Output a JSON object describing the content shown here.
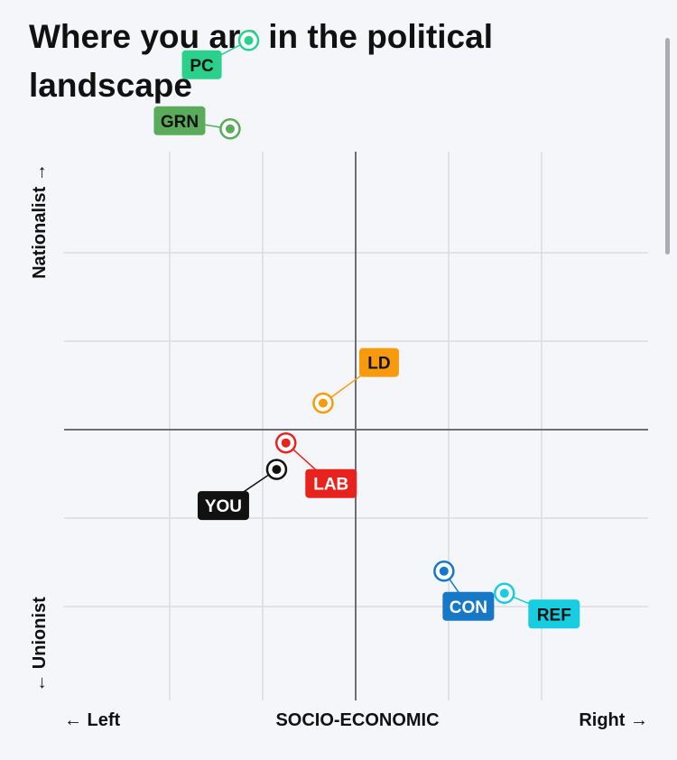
{
  "title": "Where you are in the political landscape",
  "chart_data": {
    "type": "scatter",
    "title": "Where you are in the political landscape",
    "xlabel": "SOCIO-ECONOMIC",
    "x_left_label": "← Left",
    "x_right_label": "Right →",
    "y_top_label": "Nationalist →",
    "y_bottom_label": "← Unionist",
    "xlim": [
      -5,
      5
    ],
    "ylim": [
      -5,
      5
    ],
    "grid": true,
    "points": [
      {
        "name": "PC",
        "label": "PC",
        "x": -2.3,
        "y": 4.4,
        "color": "#2bd18b",
        "text_color": "#111111",
        "label_dx": -52,
        "label_dy": 27
      },
      {
        "name": "GRN",
        "label": "GRN",
        "x": -2.7,
        "y": 3.4,
        "color": "#5aac5a",
        "text_color": "#111111",
        "label_dx": -56,
        "label_dy": -9
      },
      {
        "name": "LD",
        "label": "LD",
        "x": -0.7,
        "y": 0.3,
        "color": "#f79a0d",
        "text_color": "#111111",
        "label_dx": 62,
        "label_dy": -45
      },
      {
        "name": "LAB",
        "label": "LAB",
        "x": -1.5,
        "y": -0.15,
        "color": "#e8231d",
        "text_color": "#ffffff",
        "label_dx": 50,
        "label_dy": 45
      },
      {
        "name": "YOU",
        "label": "YOU",
        "x": -1.7,
        "y": -0.45,
        "color": "#111111",
        "text_color": "#ffffff",
        "label_dx": -59,
        "label_dy": 40
      },
      {
        "name": "CON",
        "label": "CON",
        "x": 1.9,
        "y": -1.6,
        "color": "#1878c8",
        "text_color": "#ffffff",
        "label_dx": 27,
        "label_dy": 39
      },
      {
        "name": "REF",
        "label": "REF",
        "x": 3.2,
        "y": -1.85,
        "color": "#19cde0",
        "text_color": "#111111",
        "label_dx": 55,
        "label_dy": 23
      }
    ]
  }
}
